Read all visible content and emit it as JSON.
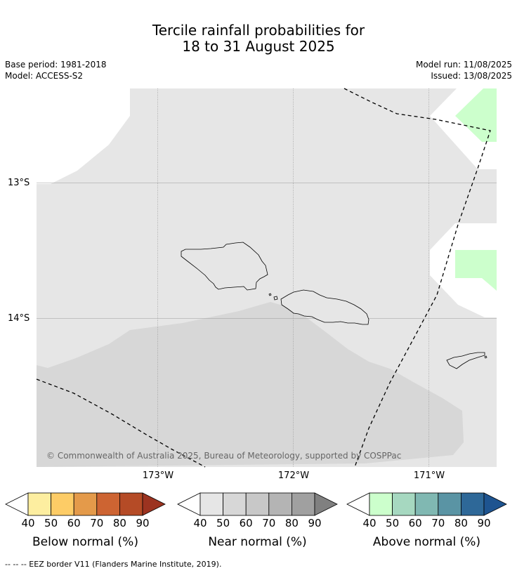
{
  "title_line1": "Tercile rainfall probabilities for",
  "title_line2": "18 to 31 August 2025",
  "base_period": "Base period: 1981-2018",
  "model": "Model: ACCESS-S2",
  "model_run": "Model run: 11/08/2025",
  "issued": "Issued: 13/08/2025",
  "lon_labels": [
    "173°W",
    "172°W",
    "171°W"
  ],
  "lat_labels": [
    "13°S",
    "14°S"
  ],
  "copyright": "© Commonwealth of Australia 2025, Bureau of Meteorology, supported by COSPPac",
  "footer": "--  --  -- EEZ border V11 (Flanders Marine Institute, 2019).",
  "legends": [
    {
      "label": "Below normal (%)",
      "ticks": [
        "40",
        "50",
        "60",
        "70",
        "80",
        "90"
      ],
      "colors": [
        "#fdeea0",
        "#fdcc66",
        "#e49a4a",
        "#cd6432",
        "#b54b26",
        "#9c3320"
      ]
    },
    {
      "label": "Near normal (%)",
      "ticks": [
        "40",
        "50",
        "60",
        "70",
        "80",
        "90"
      ],
      "colors": [
        "#e6e6e6",
        "#d7d7d7",
        "#c8c8c8",
        "#b4b4b4",
        "#a0a0a0",
        "#808080"
      ]
    },
    {
      "label": "Above normal (%)",
      "ticks": [
        "40",
        "50",
        "60",
        "70",
        "80",
        "90"
      ],
      "colors": [
        "#ccffcc",
        "#a6d8c0",
        "#80b8b2",
        "#5a94a4",
        "#2e6898",
        "#1e5490"
      ]
    }
  ],
  "colors": {
    "near_light": "#e6e6e6",
    "near_medium": "#d7d7d7",
    "above_light": "#ccffcc"
  }
}
